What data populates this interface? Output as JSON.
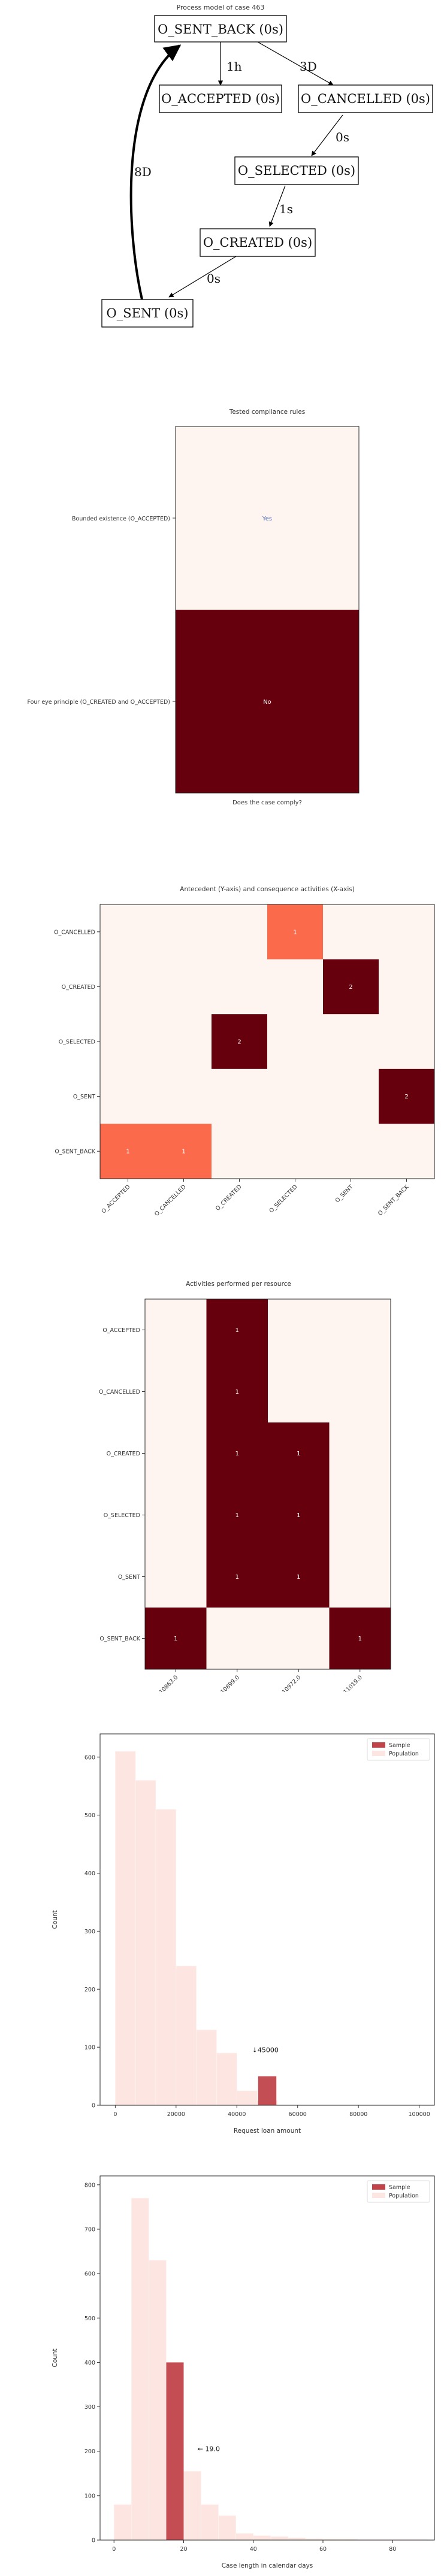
{
  "process_model": {
    "title": "Process model of case 463",
    "nodes": {
      "sent_back": "O_SENT_BACK (0s)",
      "accepted": "O_ACCEPTED (0s)",
      "cancelled": "O_CANCELLED (0s)",
      "selected": "O_SELECTED (0s)",
      "created": "O_CREATED (0s)",
      "sent": "O_SENT (0s)"
    },
    "edges": {
      "sb_acc": "1h",
      "sb_can": "3D",
      "can_sel": "0s",
      "sel_cre": "1s",
      "cre_sent": "0s",
      "sent_sb": "8D"
    }
  },
  "compliance": {
    "title": "Tested compliance rules",
    "xlabel": "Does the case comply?",
    "colors": {
      "low": "#fff5f0",
      "high": "#67000d"
    },
    "rows": [
      {
        "label": "Bounded existence (O_ACCEPTED)",
        "value": "Yes"
      },
      {
        "label": "Four eye principle (O_CREATED and O_ACCEPTED)",
        "value": "No"
      }
    ]
  },
  "antecedent": {
    "title": "Antecedent (Y-axis) and consequence activities (X-axis)",
    "rows": [
      "O_CANCELLED",
      "O_CREATED",
      "O_SELECTED",
      "O_SENT",
      "O_SENT_BACK"
    ],
    "cols": [
      "O_ACCEPTED",
      "O_CANCELLED",
      "O_CREATED",
      "O_SELECTED",
      "O_SENT",
      "O_SENT_BACK"
    ],
    "cells": [
      {
        "r": 0,
        "c": 3,
        "v": "1"
      },
      {
        "r": 1,
        "c": 4,
        "v": "2"
      },
      {
        "r": 2,
        "c": 2,
        "v": "2"
      },
      {
        "r": 3,
        "c": 5,
        "v": "2"
      },
      {
        "r": 4,
        "c": 0,
        "v": "1"
      },
      {
        "r": 4,
        "c": 1,
        "v": "1"
      }
    ]
  },
  "resources": {
    "title": "Activities performed per resource",
    "rows": [
      "O_ACCEPTED",
      "O_CANCELLED",
      "O_CREATED",
      "O_SELECTED",
      "O_SENT",
      "O_SENT_BACK"
    ],
    "cols": [
      "10863.0",
      "10899.0",
      "10972.0",
      "11019.0"
    ],
    "cells": [
      {
        "r": 0,
        "c": 1,
        "v": "1"
      },
      {
        "r": 1,
        "c": 1,
        "v": "1"
      },
      {
        "r": 2,
        "c": 1,
        "v": "1"
      },
      {
        "r": 2,
        "c": 2,
        "v": "1"
      },
      {
        "r": 3,
        "c": 1,
        "v": "1"
      },
      {
        "r": 3,
        "c": 2,
        "v": "1"
      },
      {
        "r": 4,
        "c": 1,
        "v": "1"
      },
      {
        "r": 4,
        "c": 2,
        "v": "1"
      },
      {
        "r": 5,
        "c": 0,
        "v": "1"
      },
      {
        "r": 5,
        "c": 3,
        "v": "1"
      }
    ]
  },
  "chart_data": [
    {
      "type": "bar",
      "xlabel": "Request loan amount",
      "ylabel": "Count",
      "xlim": [
        -5000,
        105000
      ],
      "ylim": [
        0,
        640
      ],
      "xticks": [
        "0",
        "20000",
        "40000",
        "60000",
        "80000",
        "100000"
      ],
      "yticks": [
        "0",
        "100",
        "200",
        "300",
        "400",
        "500",
        "600"
      ],
      "legend": [
        "Sample",
        "Population"
      ],
      "legend_position": "top-right",
      "annotation": "↓45000",
      "annotation_x": 45000,
      "colors": {
        "sample": "#c0444a",
        "population": "#fde6e1"
      },
      "population": {
        "bin_edges": [
          0,
          6667,
          13333,
          20000,
          26667,
          33333,
          40000,
          46667,
          53333
        ],
        "values": [
          610,
          560,
          510,
          240,
          130,
          90,
          25,
          8
        ]
      },
      "sample": {
        "bin_edges": [
          47000,
          53000
        ],
        "values": [
          50
        ]
      }
    },
    {
      "type": "bar",
      "xlabel": "Case length in calendar days",
      "ylabel": "Count",
      "xlim": [
        -4,
        92
      ],
      "ylim": [
        0,
        820
      ],
      "xticks": [
        "0",
        "20",
        "40",
        "60",
        "80"
      ],
      "yticks": [
        "0",
        "100",
        "200",
        "300",
        "400",
        "500",
        "600",
        "700",
        "800"
      ],
      "legend": [
        "Sample",
        "Population"
      ],
      "legend_position": "top-right",
      "annotation": "← 19.0",
      "annotation_x": 24,
      "colors": {
        "sample": "#c0444a",
        "population": "#fde6e1"
      },
      "population": {
        "bin_edges": [
          0,
          5,
          10,
          15,
          20,
          25,
          30,
          35,
          40,
          45,
          50,
          55,
          60,
          65,
          70,
          75,
          80,
          85,
          90
        ],
        "values": [
          80,
          770,
          630,
          400,
          155,
          80,
          55,
          15,
          10,
          8,
          5,
          3,
          2,
          2,
          1,
          1,
          1,
          1
        ]
      },
      "sample": {
        "bin_edges": [
          15,
          20
        ],
        "values": [
          400
        ]
      }
    }
  ]
}
